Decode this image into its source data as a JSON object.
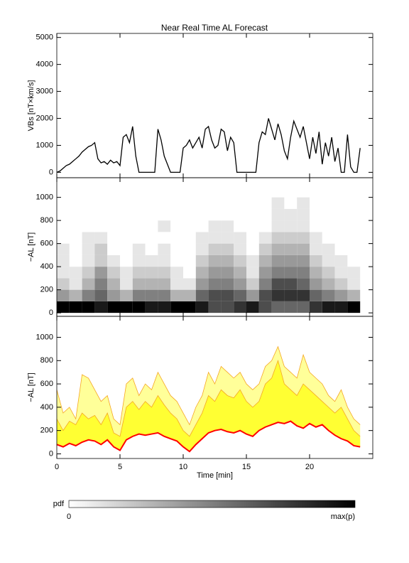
{
  "chart_data": [
    {
      "type": "line",
      "title": "Near Real Time AL Forecast",
      "ylabel": "VBs [nT×km/s]",
      "color": "#000000",
      "x": [
        0,
        0.25,
        0.5,
        0.75,
        1,
        1.25,
        1.5,
        1.75,
        2,
        2.25,
        2.5,
        2.75,
        3,
        3.25,
        3.5,
        3.75,
        4,
        4.25,
        4.5,
        4.75,
        5,
        5.25,
        5.5,
        5.75,
        6,
        6.25,
        6.5,
        6.75,
        7,
        7.25,
        7.5,
        7.75,
        8,
        8.25,
        8.5,
        8.75,
        9,
        9.25,
        9.5,
        9.75,
        10,
        10.25,
        10.5,
        10.75,
        11,
        11.25,
        11.5,
        11.75,
        12,
        12.25,
        12.5,
        12.75,
        13,
        13.25,
        13.5,
        13.75,
        14,
        14.25,
        14.5,
        14.75,
        15,
        15.25,
        15.5,
        15.75,
        16,
        16.25,
        16.5,
        16.75,
        17,
        17.25,
        17.5,
        17.75,
        18,
        18.25,
        18.5,
        18.75,
        19,
        19.25,
        19.5,
        19.75,
        20,
        20.25,
        20.5,
        20.75,
        21,
        21.25,
        21.5,
        21.75,
        22,
        22.25,
        22.5,
        22.75,
        23,
        23.25,
        23.5,
        23.75,
        24
      ],
      "values": [
        0,
        50,
        150,
        250,
        300,
        400,
        500,
        600,
        750,
        850,
        950,
        1000,
        1100,
        500,
        350,
        400,
        300,
        450,
        350,
        400,
        250,
        1300,
        1400,
        1100,
        1700,
        600,
        0,
        0,
        0,
        0,
        0,
        0,
        1600,
        1200,
        600,
        300,
        0,
        0,
        0,
        0,
        900,
        1000,
        1200,
        900,
        1100,
        1300,
        900,
        1600,
        1700,
        1200,
        900,
        1000,
        1600,
        1500,
        800,
        1300,
        1100,
        0,
        0,
        0,
        0,
        0,
        0,
        0,
        1100,
        1500,
        1400,
        2000,
        1600,
        1200,
        1800,
        1400,
        800,
        500,
        1300,
        1900,
        1600,
        1300,
        1700,
        1100,
        500,
        1300,
        700,
        1500,
        300,
        1100,
        600,
        1300,
        400,
        900,
        0,
        0,
        1400,
        200,
        0,
        0,
        900
      ],
      "xlim": [
        0,
        25
      ],
      "xticks": [
        0,
        5,
        10,
        15,
        20
      ],
      "ylim": [
        -200,
        5150
      ],
      "yticks": [
        0,
        1000,
        2000,
        3000,
        4000,
        5000
      ]
    },
    {
      "type": "heatmap",
      "ylabel": "−AL [nT]",
      "x_edges": [
        0,
        1,
        2,
        3,
        4,
        5,
        6,
        7,
        8,
        9,
        10,
        11,
        12,
        13,
        14,
        15,
        16,
        17,
        18,
        19,
        20,
        21,
        22,
        23,
        24
      ],
      "y_edges": [
        0,
        100,
        200,
        300,
        400,
        500,
        600,
        700,
        800,
        900,
        1000
      ],
      "z": [
        [
          1,
          1,
          1,
          0.9,
          1,
          1,
          1,
          0.9,
          0.9,
          1,
          1,
          0.9,
          0.7,
          0.7,
          0.8,
          0.9,
          0.7,
          0.6,
          0.6,
          0.6,
          0.8,
          0.9,
          0.9,
          1
        ],
        [
          0.4,
          0.3,
          0.5,
          0.6,
          0.4,
          0.3,
          0.5,
          0.5,
          0.5,
          0.3,
          0.3,
          0.6,
          0.7,
          0.7,
          0.6,
          0.4,
          0.7,
          0.8,
          0.8,
          0.8,
          0.6,
          0.5,
          0.4,
          0.3
        ],
        [
          0.2,
          0.1,
          0.3,
          0.5,
          0.3,
          0.1,
          0.3,
          0.3,
          0.3,
          0.1,
          0.1,
          0.4,
          0.5,
          0.5,
          0.4,
          0.2,
          0.5,
          0.7,
          0.7,
          0.6,
          0.4,
          0.3,
          0.2,
          0.1
        ],
        [
          0.1,
          0.1,
          0.2,
          0.4,
          0.2,
          0.1,
          0.2,
          0.2,
          0.2,
          0.1,
          0,
          0.3,
          0.4,
          0.4,
          0.3,
          0.1,
          0.4,
          0.5,
          0.5,
          0.5,
          0.3,
          0.2,
          0.1,
          0.1
        ],
        [
          0.1,
          0,
          0.1,
          0.2,
          0.1,
          0,
          0.1,
          0.1,
          0.1,
          0,
          0,
          0.2,
          0.3,
          0.3,
          0.2,
          0.1,
          0.3,
          0.4,
          0.4,
          0.4,
          0.2,
          0.1,
          0.1,
          0
        ],
        [
          0.1,
          0,
          0.1,
          0.2,
          0,
          0,
          0.1,
          0,
          0.1,
          0,
          0,
          0.1,
          0.2,
          0.2,
          0.1,
          0,
          0.2,
          0.3,
          0.3,
          0.3,
          0.1,
          0.1,
          0,
          0
        ],
        [
          0,
          0,
          0.1,
          0.1,
          0,
          0,
          0,
          0,
          0,
          0,
          0,
          0.1,
          0.1,
          0.1,
          0.1,
          0,
          0.1,
          0.2,
          0.2,
          0.2,
          0.1,
          0,
          0,
          0
        ],
        [
          0,
          0,
          0,
          0,
          0,
          0,
          0,
          0,
          0.1,
          0,
          0,
          0,
          0.1,
          0.1,
          0,
          0,
          0,
          0.1,
          0.1,
          0.1,
          0,
          0,
          0,
          0
        ],
        [
          0,
          0,
          0,
          0,
          0,
          0,
          0,
          0,
          0,
          0,
          0,
          0,
          0,
          0,
          0,
          0,
          0,
          0.1,
          0.1,
          0.1,
          0,
          0,
          0,
          0
        ],
        [
          0,
          0,
          0,
          0,
          0,
          0,
          0,
          0,
          0,
          0,
          0,
          0,
          0,
          0,
          0,
          0,
          0,
          0.1,
          0,
          0.1,
          0,
          0,
          0,
          0
        ]
      ],
      "xlim": [
        0,
        25
      ],
      "xticks": [
        0,
        5,
        10,
        15,
        20
      ],
      "ylim": [
        -30,
        1170
      ],
      "yticks": [
        0,
        200,
        400,
        600,
        800,
        1000
      ]
    },
    {
      "type": "band",
      "ylabel": "−AL [nT]",
      "xlabel": "Time [min]",
      "x": [
        0,
        0.5,
        1,
        1.5,
        2,
        2.5,
        3,
        3.5,
        4,
        4.5,
        5,
        5.5,
        6,
        6.5,
        7,
        7.5,
        8,
        8.5,
        9,
        9.5,
        10,
        10.5,
        11,
        11.5,
        12,
        12.5,
        13,
        13.5,
        14,
        14.5,
        15,
        15.5,
        16,
        16.5,
        17,
        17.5,
        18,
        18.5,
        19,
        19.5,
        20,
        20.5,
        21,
        21.5,
        22,
        22.5,
        23,
        23.5,
        24
      ],
      "series": [
        {
          "color": "#f5a623",
          "fill": "#ffff99",
          "values": [
            550,
            350,
            400,
            300,
            680,
            650,
            550,
            450,
            500,
            300,
            250,
            600,
            650,
            500,
            600,
            550,
            700,
            600,
            500,
            450,
            350,
            250,
            400,
            500,
            700,
            600,
            750,
            700,
            650,
            700,
            600,
            550,
            600,
            750,
            800,
            920,
            750,
            700,
            650,
            850,
            700,
            650,
            600,
            500,
            450,
            550,
            400,
            300,
            250
          ]
        },
        {
          "color": "#f5a623",
          "fill": "#ffff33",
          "values": [
            300,
            200,
            280,
            250,
            350,
            300,
            330,
            250,
            350,
            180,
            150,
            400,
            450,
            380,
            450,
            400,
            500,
            420,
            350,
            300,
            200,
            150,
            250,
            350,
            500,
            450,
            550,
            500,
            480,
            550,
            450,
            400,
            450,
            600,
            650,
            800,
            600,
            550,
            500,
            600,
            550,
            500,
            450,
            400,
            350,
            400,
            300,
            200,
            150
          ]
        },
        {
          "color": "#ff0000",
          "values": [
            80,
            60,
            90,
            70,
            100,
            120,
            110,
            80,
            120,
            60,
            30,
            120,
            150,
            170,
            160,
            170,
            180,
            150,
            130,
            110,
            60,
            20,
            80,
            130,
            180,
            200,
            210,
            190,
            180,
            200,
            170,
            150,
            200,
            230,
            250,
            270,
            260,
            280,
            240,
            220,
            260,
            230,
            250,
            200,
            160,
            130,
            110,
            70,
            60
          ]
        }
      ],
      "xlim": [
        0,
        25
      ],
      "xticks": [
        0,
        5,
        10,
        15,
        20
      ],
      "ylim": [
        -40,
        1180
      ],
      "yticks": [
        0,
        200,
        400,
        600,
        800,
        1000
      ]
    }
  ],
  "colorbar": {
    "label": "pdf",
    "min_label": "0",
    "max_label": "max(p)"
  }
}
